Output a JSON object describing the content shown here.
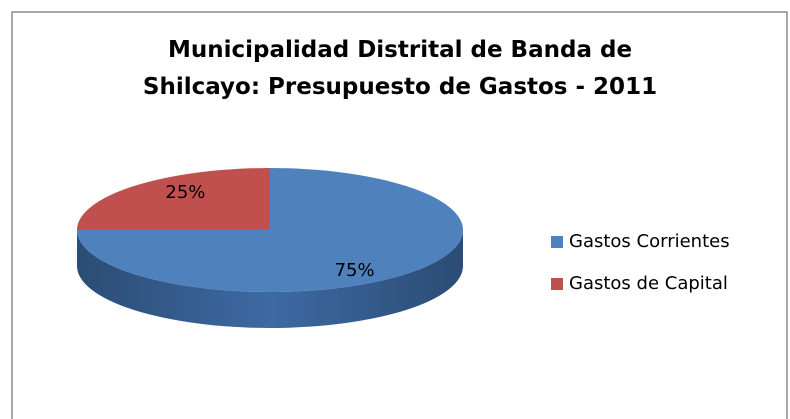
{
  "chart_data": {
    "type": "pie3d",
    "title": "Municipalidad Distrital de Banda de Shilcayo: Presupuesto de Gastos - 2011",
    "categories": [
      "Gastos Corrientes",
      "Gastos de Capital"
    ],
    "values": [
      75,
      25
    ],
    "value_labels": [
      "75%",
      "25%"
    ],
    "colors": [
      "#4f81bd",
      "#c0504d"
    ],
    "legend": "right"
  }
}
